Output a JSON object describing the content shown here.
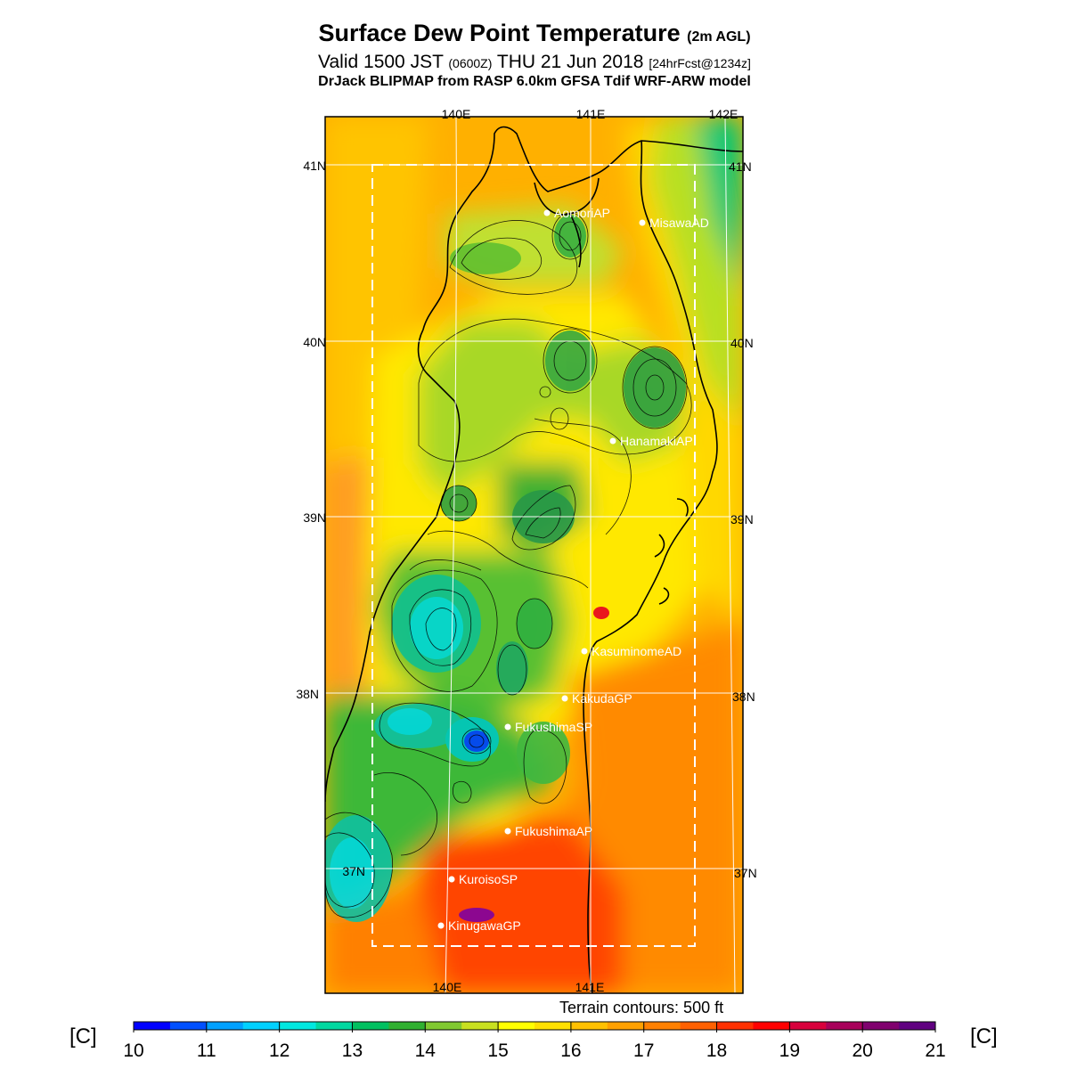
{
  "title": {
    "main": "Surface Dew Point Temperature",
    "main_suffix": "(2m AGL)",
    "valid_prefix": "Valid 1500 JST",
    "valid_zulu": "(0600Z)",
    "valid_date": "THU 21 Jun 2018",
    "valid_forecast": "[24hrFcst@1234z]",
    "model": "DrJack BLIPMAP from RASP 6.0km GFSA Tdif WRF-ARW model"
  },
  "map": {
    "lon_labels_top": [
      "140E",
      "141E",
      "142E"
    ],
    "lon_labels_bottom": [
      "140E",
      "141E"
    ],
    "lat_labels_left": [
      "41N",
      "40N",
      "39N",
      "38N",
      "37N"
    ],
    "lat_labels_right": [
      "41N",
      "40N",
      "39N",
      "38N",
      "37N"
    ],
    "stations": [
      {
        "name": "AomoriAP"
      },
      {
        "name": "MisawaAD"
      },
      {
        "name": "HanamakiAP"
      },
      {
        "name": "KasuminomeAD"
      },
      {
        "name": "KakudaGP"
      },
      {
        "name": "FukushimaSP"
      },
      {
        "name": "FukushimaAP"
      },
      {
        "name": "KuroisoSP"
      },
      {
        "name": "KinugawaGP"
      }
    ]
  },
  "terrain_note": "Terrain contours: 500 ft",
  "colorbar": {
    "unit_left": "[C]",
    "unit_right": "[C]",
    "tick_labels": [
      "10",
      "11",
      "12",
      "13",
      "14",
      "15",
      "16",
      "17",
      "18",
      "19",
      "20",
      "21"
    ],
    "colors": [
      "#0000ff",
      "#0050ff",
      "#00a0ff",
      "#00d0ff",
      "#00e8e0",
      "#00d8a0",
      "#00c060",
      "#30b030",
      "#80c830",
      "#c8e020",
      "#ffff00",
      "#ffe000",
      "#ffc000",
      "#ffa000",
      "#ff8000",
      "#ff6000",
      "#ff3000",
      "#ff0000",
      "#d8003c",
      "#a8005a",
      "#80006e",
      "#600080"
    ]
  }
}
